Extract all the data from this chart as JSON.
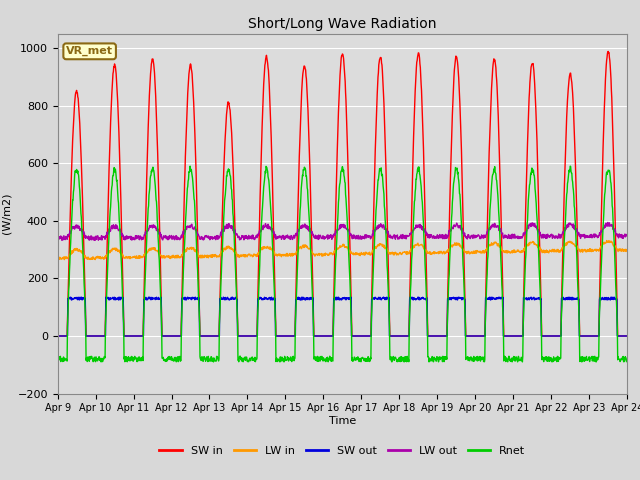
{
  "title": "Short/Long Wave Radiation",
  "ylabel": "(W/m2)",
  "xlabel": "Time",
  "ylim": [
    -200,
    1050
  ],
  "background_color": "#d8d8d8",
  "plot_bg_color": "#dcdcdc",
  "annotation_text": "VR_met",
  "annotation_bg": "#ffffcc",
  "annotation_border": "#8b6914",
  "x_tick_labels": [
    "Apr 9",
    "Apr 10",
    "Apr 11",
    "Apr 12",
    "Apr 13",
    "Apr 14",
    "Apr 15",
    "Apr 16",
    "Apr 17",
    "Apr 18",
    "Apr 19",
    "Apr 20",
    "Apr 21",
    "Apr 22",
    "Apr 23",
    "Apr 24"
  ],
  "legend_labels": [
    "SW in",
    "LW in",
    "SW out",
    "LW out",
    "Rnet"
  ],
  "colors": {
    "SW_in": "#ff0000",
    "LW_in": "#ff9900",
    "SW_out": "#0000dd",
    "LW_out": "#aa00aa",
    "Rnet": "#00cc00"
  },
  "n_days": 15,
  "pts_per_day": 96,
  "SW_in_peaks": [
    850,
    940,
    960,
    940,
    810,
    970,
    940,
    980,
    970,
    980,
    970,
    960,
    950,
    910,
    990
  ],
  "LW_in_base": 270,
  "LW_out_base": 340,
  "SW_out_plateau": 130,
  "Rnet_night": -80,
  "Rnet_day_peak": 580
}
